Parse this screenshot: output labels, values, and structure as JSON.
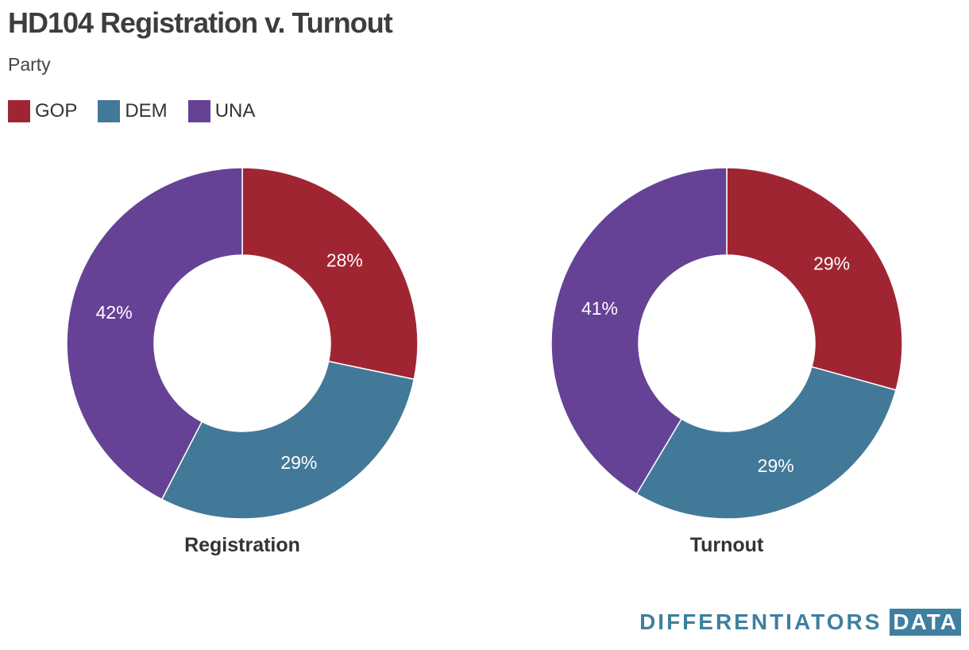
{
  "header": {
    "title": "HD104 Registration v. Turnout",
    "subtitle": "Party"
  },
  "colors": {
    "GOP": "#a02533",
    "DEM": "#437998",
    "UNA": "#654296"
  },
  "legend": [
    {
      "label": "GOP",
      "color": "#a02533"
    },
    {
      "label": "DEM",
      "color": "#437998"
    },
    {
      "label": "UNA",
      "color": "#654296"
    }
  ],
  "chart_data": [
    {
      "type": "pie",
      "subtype": "donut",
      "title": "Registration",
      "categories": [
        "GOP",
        "DEM",
        "UNA"
      ],
      "values": [
        28,
        29,
        42
      ],
      "labels": [
        "28%",
        "29%",
        "42%"
      ],
      "units": "%"
    },
    {
      "type": "pie",
      "subtype": "donut",
      "title": "Turnout",
      "categories": [
        "GOP",
        "DEM",
        "UNA"
      ],
      "values": [
        29,
        29,
        41
      ],
      "labels": [
        "29%",
        "29%",
        "41%"
      ],
      "units": "%"
    }
  ],
  "footer": {
    "brand_word": "DIFFERENTIATORS",
    "brand_box": "DATA"
  }
}
